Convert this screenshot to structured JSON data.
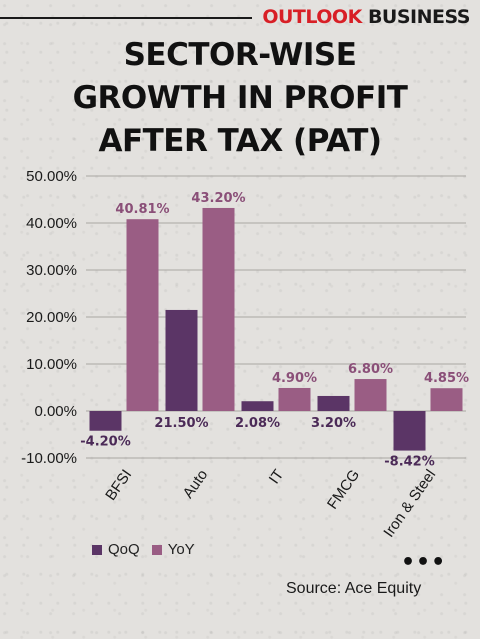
{
  "brand": {
    "part1": "OUTLOOK",
    "part2": "BUSINESS"
  },
  "title_lines": [
    "SECTOR-WISE",
    "GROWTH IN PROFIT",
    "AFTER TAX (PAT)"
  ],
  "chart_data": {
    "type": "bar",
    "categories": [
      "BFSI",
      "Auto",
      "IT",
      "FMCG",
      "Iron & Steel"
    ],
    "series": [
      {
        "name": "QoQ",
        "values": [
          -4.2,
          21.5,
          2.08,
          3.2,
          -8.42
        ],
        "labels": [
          "-4.20%",
          "21.50%",
          "2.08%",
          "3.20%",
          "-8.42%"
        ],
        "color": "#5b3566"
      },
      {
        "name": "YoY",
        "values": [
          40.81,
          43.2,
          4.9,
          6.8,
          4.85
        ],
        "labels": [
          "40.81%",
          "43.20%",
          "4.90%",
          "6.80%",
          "4.85%"
        ],
        "color": "#9a5d84"
      }
    ],
    "yticks": [
      "-10.00%",
      "0.00%",
      "10.00%",
      "20.00%",
      "30.00%",
      "40.00%",
      "50.00%"
    ],
    "ylim": [
      -10,
      50
    ],
    "grid": true,
    "legend": "bottom-left"
  },
  "more_icon": "more-dots-icon",
  "source": "Source: Ace Equity"
}
